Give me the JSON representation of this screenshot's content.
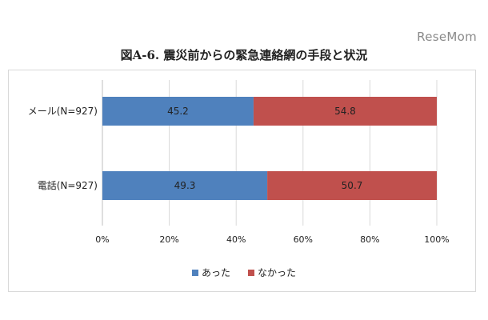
{
  "watermark": "ReseMom",
  "chart_data": {
    "type": "bar",
    "orientation": "horizontal",
    "stacked": true,
    "title": "図A-6. 震災前からの緊急連絡網の手段と状況",
    "categories": [
      "メール(N=927)",
      "電話(N=927)"
    ],
    "series": [
      {
        "name": "あった",
        "values": [
          45.2,
          49.3
        ],
        "color": "#4f81bd"
      },
      {
        "name": "なかった",
        "values": [
          54.8,
          50.7
        ],
        "color": "#c0504d"
      }
    ],
    "xlim": [
      0,
      100
    ],
    "xticks": [
      "0%",
      "20%",
      "40%",
      "60%",
      "80%",
      "100%"
    ],
    "grid": true,
    "legend_position": "bottom"
  }
}
